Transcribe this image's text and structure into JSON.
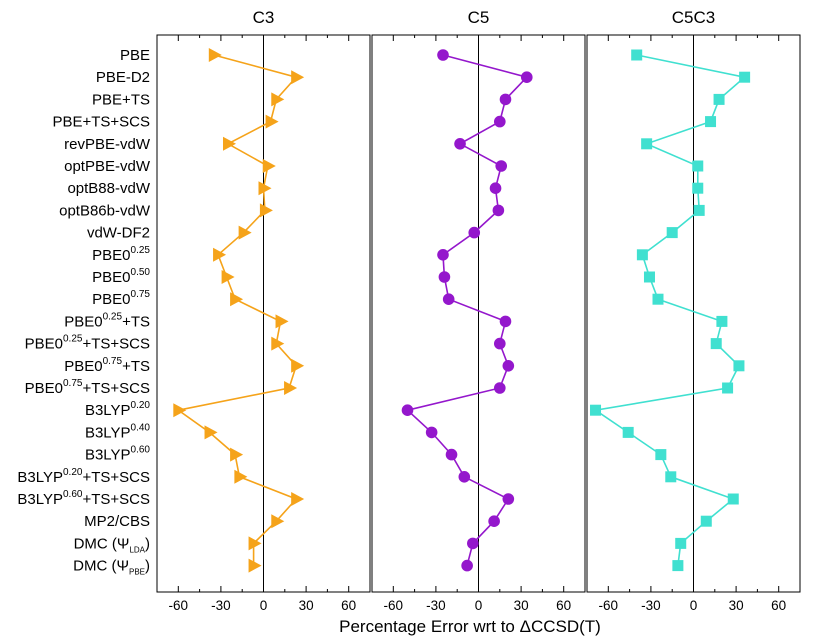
{
  "chart_data": {
    "type": "line",
    "xlabel": "Percentage Error wrt to ΔCCSD(T)",
    "xlim": [
      -75,
      75
    ],
    "xticks": [
      -60,
      -30,
      0,
      30,
      60
    ],
    "xtick_labels": [
      "-60",
      "-30",
      "0",
      "30",
      "60"
    ],
    "grid": false,
    "methods": [
      {
        "base": "PBE",
        "sup": "",
        "sub": "",
        "suffix": ""
      },
      {
        "base": "PBE-D2",
        "sup": "",
        "sub": "",
        "suffix": ""
      },
      {
        "base": "PBE+TS",
        "sup": "",
        "sub": "",
        "suffix": ""
      },
      {
        "base": "PBE+TS+SCS",
        "sup": "",
        "sub": "",
        "suffix": ""
      },
      {
        "base": "revPBE-vdW",
        "sup": "",
        "sub": "",
        "suffix": ""
      },
      {
        "base": "optPBE-vdW",
        "sup": "",
        "sub": "",
        "suffix": ""
      },
      {
        "base": "optB88-vdW",
        "sup": "",
        "sub": "",
        "suffix": ""
      },
      {
        "base": "optB86b-vdW",
        "sup": "",
        "sub": "",
        "suffix": ""
      },
      {
        "base": "vdW-DF2",
        "sup": "",
        "sub": "",
        "suffix": ""
      },
      {
        "base": "PBE0",
        "sup": "0.25",
        "sub": "",
        "suffix": ""
      },
      {
        "base": "PBE0",
        "sup": "0.50",
        "sub": "",
        "suffix": ""
      },
      {
        "base": "PBE0",
        "sup": "0.75",
        "sub": "",
        "suffix": ""
      },
      {
        "base": "PBE0",
        "sup": "0.25",
        "sub": "",
        "suffix": "+TS"
      },
      {
        "base": "PBE0",
        "sup": "0.25",
        "sub": "",
        "suffix": "+TS+SCS"
      },
      {
        "base": "PBE0",
        "sup": "0.75",
        "sub": "",
        "suffix": "+TS"
      },
      {
        "base": "PBE0",
        "sup": "0.75",
        "sub": "",
        "suffix": "+TS+SCS"
      },
      {
        "base": "B3LYP",
        "sup": "0.20",
        "sub": "",
        "suffix": ""
      },
      {
        "base": "B3LYP",
        "sup": "0.40",
        "sub": "",
        "suffix": ""
      },
      {
        "base": "B3LYP",
        "sup": "0.60",
        "sub": "",
        "suffix": ""
      },
      {
        "base": "B3LYP",
        "sup": "0.20",
        "sub": "",
        "suffix": "+TS+SCS"
      },
      {
        "base": "B3LYP",
        "sup": "0.60",
        "sub": "",
        "suffix": "+TS+SCS"
      },
      {
        "base": "MP2/CBS",
        "sup": "",
        "sub": "",
        "suffix": ""
      },
      {
        "base": "DMC (Ψ",
        "sup": "",
        "sub": "LDA",
        "suffix": ")"
      },
      {
        "base": "DMC (Ψ",
        "sup": "",
        "sub": "PBE",
        "suffix": ")"
      }
    ],
    "series": [
      {
        "name": "C3",
        "color": "#f5a31a",
        "marker": "triangle-right",
        "values": [
          -35,
          23,
          9,
          5,
          -25,
          3,
          0,
          1,
          -14,
          -32,
          -26,
          -20,
          12,
          9,
          23,
          18,
          -60,
          -38,
          -20,
          -17,
          23,
          9,
          -7,
          -7
        ]
      },
      {
        "name": "C5",
        "color": "#9417cc",
        "marker": "circle",
        "values": [
          -25,
          34,
          19,
          15,
          -13,
          16,
          12,
          14,
          -3,
          -25,
          -24,
          -21,
          19,
          15,
          21,
          15,
          -50,
          -33,
          -19,
          -10,
          21,
          11,
          -4,
          -8
        ]
      },
      {
        "name": "C5C3",
        "color": "#40e0d0",
        "marker": "square",
        "values": [
          -40,
          36,
          18,
          12,
          -33,
          3,
          3,
          4,
          -15,
          -36,
          -31,
          -25,
          20,
          16,
          32,
          24,
          -69,
          -46,
          -23,
          -16,
          28,
          9,
          -9,
          -11
        ]
      }
    ]
  }
}
